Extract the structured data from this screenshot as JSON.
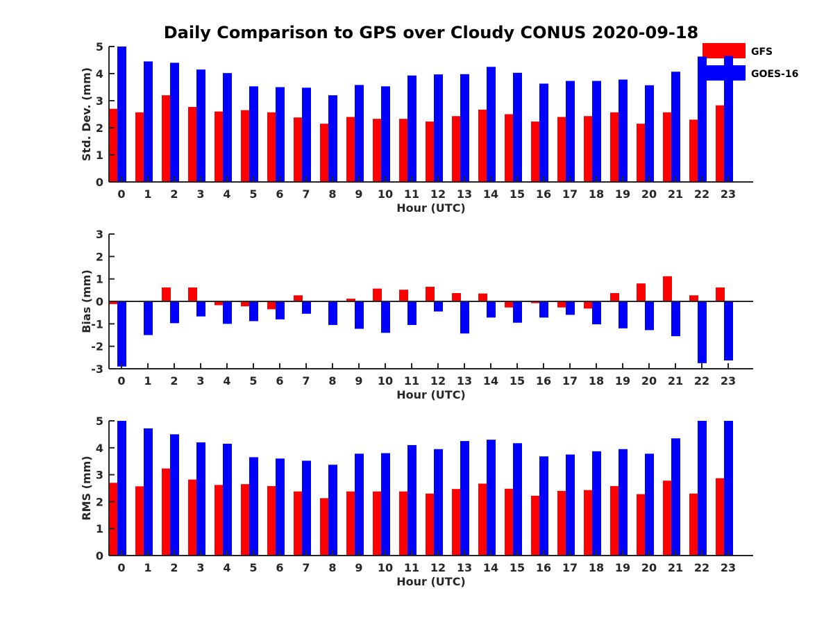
{
  "title": "Daily Comparison to GPS over Cloudy CONUS 2020-09-18",
  "legend": [
    {
      "name": "GFS",
      "color": "#ff0000"
    },
    {
      "name": "GOES-16",
      "color": "#0000ff"
    }
  ],
  "chart_data": [
    {
      "type": "bar",
      "xlabel": "Hour (UTC)",
      "ylabel": "Std. Dev. (mm)",
      "ylim": [
        0,
        5
      ],
      "yticks": [
        0,
        1,
        2,
        3,
        4,
        5
      ],
      "categories": [
        "0",
        "1",
        "2",
        "3",
        "4",
        "5",
        "6",
        "7",
        "8",
        "9",
        "10",
        "11",
        "12",
        "13",
        "14",
        "15",
        "16",
        "17",
        "18",
        "19",
        "20",
        "21",
        "22",
        "23"
      ],
      "series": [
        {
          "name": "GFS",
          "color": "#ff0000",
          "values": [
            2.7,
            2.57,
            3.2,
            2.77,
            2.6,
            2.65,
            2.57,
            2.38,
            2.15,
            2.4,
            2.33,
            2.33,
            2.23,
            2.43,
            2.67,
            2.5,
            2.23,
            2.4,
            2.43,
            2.57,
            2.15,
            2.57,
            2.3,
            2.83
          ]
        },
        {
          "name": "GOES-16",
          "color": "#0000ff",
          "values": [
            5.0,
            4.45,
            4.4,
            4.15,
            4.02,
            3.53,
            3.5,
            3.48,
            3.2,
            3.58,
            3.53,
            3.93,
            3.97,
            3.98,
            4.25,
            4.03,
            3.63,
            3.73,
            3.73,
            3.78,
            3.57,
            4.07,
            4.63,
            4.65
          ]
        }
      ]
    },
    {
      "type": "bar",
      "xlabel": "Hour (UTC)",
      "ylabel": "Bias (mm)",
      "ylim": [
        -3,
        3
      ],
      "yticks": [
        -3,
        -2,
        -1,
        0,
        1,
        2,
        3
      ],
      "zero_line": true,
      "categories": [
        "0",
        "1",
        "2",
        "3",
        "4",
        "5",
        "6",
        "7",
        "8",
        "9",
        "10",
        "11",
        "12",
        "13",
        "14",
        "15",
        "16",
        "17",
        "18",
        "19",
        "20",
        "21",
        "22",
        "23"
      ],
      "series": [
        {
          "name": "GFS",
          "color": "#ff0000",
          "values": [
            -0.12,
            0.0,
            0.62,
            0.62,
            -0.17,
            -0.22,
            -0.35,
            0.27,
            -0.03,
            0.12,
            0.57,
            0.52,
            0.65,
            0.37,
            0.35,
            -0.27,
            -0.08,
            -0.27,
            -0.32,
            0.37,
            0.8,
            1.12,
            0.27,
            0.62
          ]
        },
        {
          "name": "GOES-16",
          "color": "#0000ff",
          "values": [
            -2.9,
            -1.5,
            -0.97,
            -0.67,
            -1.0,
            -0.88,
            -0.8,
            -0.55,
            -1.05,
            -1.22,
            -1.4,
            -1.05,
            -0.45,
            -1.43,
            -0.72,
            -0.95,
            -0.72,
            -0.6,
            -1.02,
            -1.2,
            -1.28,
            -1.55,
            -2.75,
            -2.63
          ]
        }
      ]
    },
    {
      "type": "bar",
      "xlabel": "Hour (UTC)",
      "ylabel": "RMS (mm)",
      "ylim": [
        0,
        5
      ],
      "yticks": [
        0,
        1,
        2,
        3,
        4,
        5
      ],
      "categories": [
        "0",
        "1",
        "2",
        "3",
        "4",
        "5",
        "6",
        "7",
        "8",
        "9",
        "10",
        "11",
        "12",
        "13",
        "14",
        "15",
        "16",
        "17",
        "18",
        "19",
        "20",
        "21",
        "22",
        "23"
      ],
      "series": [
        {
          "name": "GFS",
          "color": "#ff0000",
          "values": [
            2.7,
            2.57,
            3.23,
            2.82,
            2.62,
            2.65,
            2.58,
            2.38,
            2.13,
            2.38,
            2.38,
            2.38,
            2.3,
            2.47,
            2.67,
            2.48,
            2.22,
            2.4,
            2.43,
            2.58,
            2.28,
            2.78,
            2.3,
            2.87
          ]
        },
        {
          "name": "GOES-16",
          "color": "#0000ff",
          "values": [
            5.0,
            4.72,
            4.5,
            4.2,
            4.15,
            3.65,
            3.6,
            3.52,
            3.37,
            3.78,
            3.8,
            4.1,
            3.95,
            4.25,
            4.3,
            4.17,
            3.68,
            3.75,
            3.87,
            3.95,
            3.78,
            4.35,
            5.0,
            5.0
          ]
        }
      ]
    }
  ]
}
